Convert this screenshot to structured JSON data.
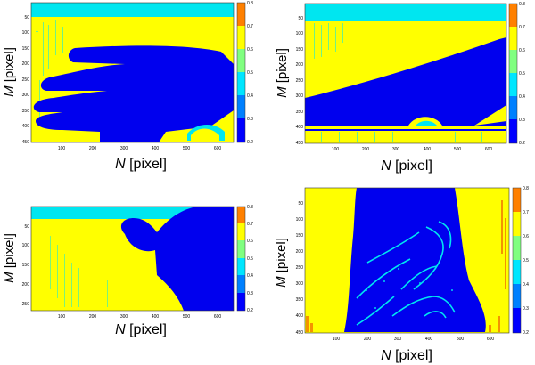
{
  "chart_data": [
    {
      "type": "heatmap",
      "id": "hand-fingers",
      "xlabel_symbol": "N",
      "xlabel_unit": "[pixel]",
      "ylabel_symbol": "M",
      "ylabel_unit": "[pixel]",
      "x_ticks": [
        "100",
        "200",
        "300",
        "400",
        "500",
        "600"
      ],
      "y_ticks": [
        "50",
        "100",
        "150",
        "200",
        "250",
        "300",
        "350",
        "400",
        "450"
      ],
      "xlim": [
        0,
        660
      ],
      "ylim": [
        0,
        450
      ],
      "colorbar_ticks": [
        "0.8",
        "0.7",
        "0.6",
        "0.5",
        "0.4",
        "0.3",
        "0.2"
      ],
      "colorbar_range": [
        0.2,
        0.8
      ]
    },
    {
      "type": "heatmap",
      "id": "diagonal-edge",
      "xlabel_symbol": "N",
      "xlabel_unit": "[pixel]",
      "ylabel_symbol": "M",
      "ylabel_unit": "[pixel]",
      "x_ticks": [
        "100",
        "200",
        "300",
        "400",
        "500",
        "600"
      ],
      "y_ticks": [
        "50",
        "100",
        "150",
        "200",
        "250",
        "300",
        "350",
        "400",
        "450"
      ],
      "xlim": [
        0,
        660
      ],
      "ylim": [
        0,
        450
      ],
      "colorbar_ticks": [
        "0.8",
        "0.7",
        "0.6",
        "0.5",
        "0.4",
        "0.3",
        "0.2"
      ],
      "colorbar_range": [
        0.2,
        0.8
      ]
    },
    {
      "type": "heatmap",
      "id": "hand-thumb",
      "xlabel_symbol": "N",
      "xlabel_unit": "[pixel]",
      "ylabel_symbol": "M",
      "ylabel_unit": "[pixel]",
      "x_ticks": [
        "100",
        "200",
        "300",
        "400",
        "500",
        "600"
      ],
      "y_ticks": [
        "50",
        "100",
        "150",
        "200",
        "250"
      ],
      "xlim": [
        0,
        660
      ],
      "ylim": [
        0,
        270
      ],
      "colorbar_ticks": [
        "0.8",
        "0.7",
        "0.6",
        "0.5",
        "0.4",
        "0.3",
        "0.2"
      ],
      "colorbar_range": [
        0.2,
        0.8
      ]
    },
    {
      "type": "heatmap",
      "id": "palm-lines",
      "xlabel_symbol": "N",
      "xlabel_unit": "[pixel]",
      "ylabel_symbol": "M",
      "ylabel_unit": "[pixel]",
      "x_ticks": [
        "100",
        "200",
        "300",
        "400",
        "500",
        "600"
      ],
      "y_ticks": [
        "50",
        "100",
        "150",
        "200",
        "250",
        "300",
        "350",
        "400",
        "450"
      ],
      "xlim": [
        0,
        660
      ],
      "ylim": [
        0,
        450
      ],
      "colorbar_ticks": [
        "0.8",
        "0.7",
        "0.6",
        "0.5",
        "0.4",
        "0.3",
        "0.2"
      ],
      "colorbar_range": [
        0.2,
        0.8
      ]
    }
  ],
  "colors": {
    "blue": "#0000ee",
    "yellow": "#ffff00",
    "cyan": "#00e6f0",
    "orange": "#f27a00",
    "colorbar": [
      "#0000ff",
      "#0080ff",
      "#00e6ff",
      "#80ff80",
      "#ffff00",
      "#ff8000"
    ]
  }
}
